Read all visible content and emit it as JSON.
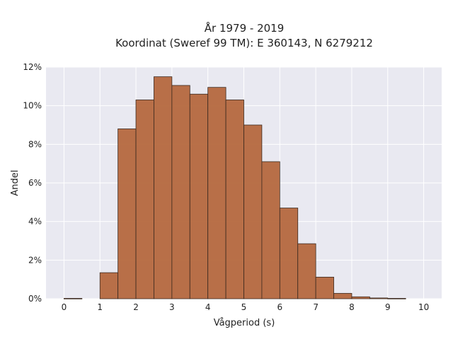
{
  "chart_data": {
    "type": "bar",
    "title_lines": [
      "År 1979 - 2019",
      "Koordinat (Sweref 99 TM): E 360143, N 6279212"
    ],
    "xlabel": "Vågperiod (s)",
    "ylabel": "Andel",
    "xlim": [
      -0.5,
      10.5
    ],
    "ylim": [
      0,
      12
    ],
    "x_ticks": [
      0,
      1,
      2,
      3,
      4,
      5,
      6,
      7,
      8,
      9,
      10
    ],
    "y_ticks": [
      0,
      2,
      4,
      6,
      8,
      10,
      12
    ],
    "y_tick_format": "percent",
    "bin_width": 0.5,
    "bins": [
      {
        "x0": 0.0,
        "x1": 0.5,
        "value": 0.02
      },
      {
        "x0": 0.5,
        "x1": 1.0,
        "value": 0.0
      },
      {
        "x0": 1.0,
        "x1": 1.5,
        "value": 1.35
      },
      {
        "x0": 1.5,
        "x1": 2.0,
        "value": 8.8
      },
      {
        "x0": 2.0,
        "x1": 2.5,
        "value": 10.3
      },
      {
        "x0": 2.5,
        "x1": 3.0,
        "value": 11.5
      },
      {
        "x0": 3.0,
        "x1": 3.5,
        "value": 11.05
      },
      {
        "x0": 3.5,
        "x1": 4.0,
        "value": 10.6
      },
      {
        "x0": 4.0,
        "x1": 4.5,
        "value": 10.95
      },
      {
        "x0": 4.5,
        "x1": 5.0,
        "value": 10.3
      },
      {
        "x0": 5.0,
        "x1": 5.5,
        "value": 9.0
      },
      {
        "x0": 5.5,
        "x1": 6.0,
        "value": 7.1
      },
      {
        "x0": 6.0,
        "x1": 6.5,
        "value": 4.7
      },
      {
        "x0": 6.5,
        "x1": 7.0,
        "value": 2.85
      },
      {
        "x0": 7.0,
        "x1": 7.5,
        "value": 1.12
      },
      {
        "x0": 7.5,
        "x1": 8.0,
        "value": 0.28
      },
      {
        "x0": 8.0,
        "x1": 8.5,
        "value": 0.1
      },
      {
        "x0": 8.5,
        "x1": 9.0,
        "value": 0.04
      },
      {
        "x0": 9.0,
        "x1": 9.5,
        "value": 0.02
      }
    ],
    "grid": true,
    "legend": false,
    "colors": {
      "bar_fill": "#b5683e",
      "bar_stroke": "#3b2a20",
      "plot_background": "#e9e9f1",
      "grid": "#ffffff",
      "text": "#222222"
    }
  }
}
